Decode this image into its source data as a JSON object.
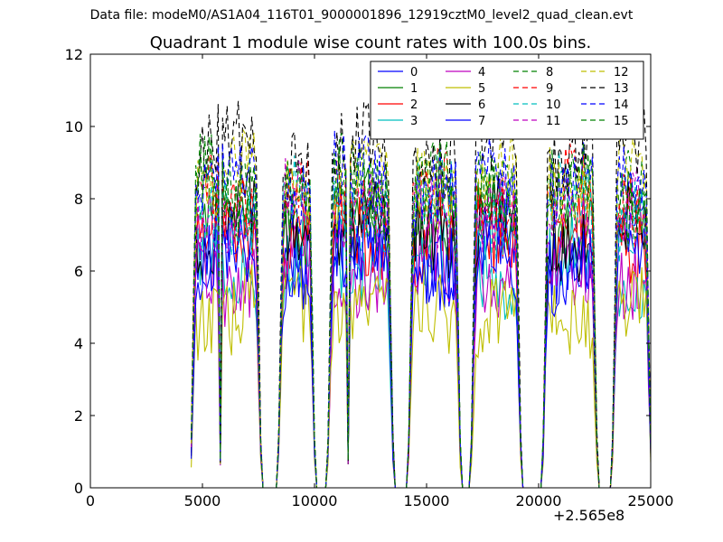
{
  "figure": {
    "suptitle": "Data file: modeM0/AS1A04_116T01_9000001896_12919cztM0_level2_quad_clean.evt",
    "title": "Quadrant 1 module wise count rates with 100.0s bins.",
    "x_offset_label": "+2.565e8"
  },
  "chart_data": {
    "type": "line",
    "title": "Quadrant 1 module wise count rates with 100.0s bins.",
    "xlabel": "",
    "ylabel": "",
    "xlim": [
      0,
      25000
    ],
    "ylim": [
      0,
      12
    ],
    "x_offset": 256500000,
    "xticks": [
      0,
      5000,
      10000,
      15000,
      20000,
      25000
    ],
    "yticks": [
      0,
      2,
      4,
      6,
      8,
      10,
      12
    ],
    "grid": false,
    "legend_location": "top-right",
    "legend_columns": 4,
    "segments": [
      [
        4500,
        7600
      ],
      [
        8400,
        10000
      ],
      [
        10600,
        13500
      ],
      [
        14200,
        16500
      ],
      [
        17000,
        19200
      ],
      [
        20200,
        22600
      ],
      [
        23300,
        25000
      ]
    ],
    "dropouts": [
      [
        5800,
        0.6
      ],
      [
        10300,
        0
      ],
      [
        11500,
        0.6
      ]
    ],
    "series": [
      {
        "name": "0",
        "color": "#0000ff",
        "style": "solid",
        "level": 6.5
      },
      {
        "name": "1",
        "color": "#008000",
        "style": "solid",
        "level": 7.4
      },
      {
        "name": "2",
        "color": "#ff0000",
        "style": "solid",
        "level": 6.9
      },
      {
        "name": "3",
        "color": "#00bfbf",
        "style": "solid",
        "level": 6.2
      },
      {
        "name": "4",
        "color": "#bf00bf",
        "style": "solid",
        "level": 6.0
      },
      {
        "name": "5",
        "color": "#bfbf00",
        "style": "solid",
        "level": 5.0
      },
      {
        "name": "6",
        "color": "#000000",
        "style": "solid",
        "level": 7.2
      },
      {
        "name": "7",
        "color": "#0000ff",
        "style": "solid",
        "level": 6.3
      },
      {
        "name": "8",
        "color": "#008000",
        "style": "dashed",
        "level": 8.3
      },
      {
        "name": "9",
        "color": "#ff0000",
        "style": "dashed",
        "level": 8.0
      },
      {
        "name": "10",
        "color": "#00bfbf",
        "style": "dashed",
        "level": 7.8
      },
      {
        "name": "11",
        "color": "#bf00bf",
        "style": "dashed",
        "level": 7.7
      },
      {
        "name": "12",
        "color": "#bfbf00",
        "style": "dashed",
        "level": 8.6
      },
      {
        "name": "13",
        "color": "#000000",
        "style": "dashed",
        "level": 9.3
      },
      {
        "name": "14",
        "color": "#0000ff",
        "style": "dashed",
        "level": 8.4
      },
      {
        "name": "15",
        "color": "#008000",
        "style": "dashed",
        "level": 8.2
      }
    ]
  }
}
